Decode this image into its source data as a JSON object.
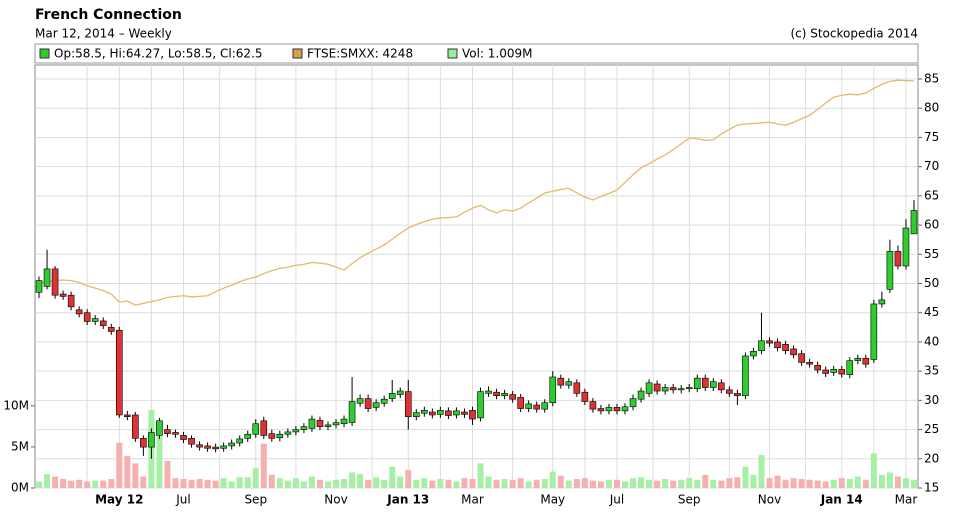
{
  "chart_data": {
    "type": "candlestick",
    "title": "French Connection",
    "subtitle": "Mar 12, 2014 – Weekly",
    "copyright": "(c) Stockopedia 2014",
    "legend": [
      {
        "text": "Op:58.5, Hi:64.27, Lo:58.5, Cl:62.5",
        "color": "#2ecc2e"
      },
      {
        "text": "FTSE:SMXX: 4248",
        "color": "#d9a14a"
      },
      {
        "text": "Vol: 1.009M",
        "color": "#99ee99"
      }
    ],
    "categories": [
      null,
      null,
      null,
      null,
      null,
      null,
      null,
      null,
      null,
      null,
      "May 12",
      null,
      null,
      null,
      null,
      null,
      null,
      null,
      "Jul",
      null,
      null,
      null,
      null,
      null,
      null,
      null,
      null,
      "Sep",
      null,
      null,
      null,
      null,
      null,
      null,
      null,
      null,
      null,
      "Nov",
      null,
      null,
      null,
      null,
      null,
      null,
      null,
      null,
      "Jan 13",
      null,
      null,
      null,
      null,
      null,
      null,
      null,
      "Mar",
      null,
      null,
      null,
      null,
      null,
      null,
      null,
      null,
      null,
      "May",
      null,
      null,
      null,
      null,
      null,
      null,
      null,
      "Jul",
      null,
      null,
      null,
      null,
      null,
      null,
      null,
      null,
      "Sep",
      null,
      null,
      null,
      null,
      null,
      null,
      null,
      null,
      null,
      "Nov",
      null,
      null,
      null,
      null,
      null,
      null,
      null,
      null,
      "Jan 14",
      null,
      null,
      null,
      null,
      null,
      null,
      null,
      "Mar",
      null
    ],
    "open": [
      48.5,
      49.5,
      52.5,
      48.2,
      48,
      45.5,
      45,
      43.5,
      43.6,
      42.5,
      42,
      27.5,
      27.5,
      23.5,
      22,
      24,
      25,
      24.5,
      24,
      23.5,
      22.4,
      22.2,
      22,
      21.8,
      22.2,
      22.7,
      23.5,
      24.2,
      26.5,
      24.3,
      23.6,
      24.2,
      24.6,
      25,
      25.2,
      26.6,
      25.5,
      25.8,
      26,
      26.2,
      29.5,
      30.3,
      28.8,
      29.5,
      30.3,
      31,
      31.5,
      27.2,
      27.8,
      28,
      27.6,
      28.2,
      27.5,
      28,
      28.3,
      27,
      31.2,
      31.4,
      30.8,
      31,
      30.5,
      28.6,
      29.2,
      28.5,
      29.6,
      33.8,
      32.6,
      33,
      31.4,
      29.8,
      28.6,
      28.2,
      28.8,
      28.2,
      28.9,
      30.2,
      31.2,
      32.8,
      31.6,
      32.2,
      31.8,
      32,
      32,
      33.8,
      32.2,
      33,
      31.8,
      31.2,
      30.8,
      37.6,
      38.5,
      40.2,
      40,
      39.6,
      38.8,
      38,
      36.5,
      36,
      35.2,
      34.8,
      35.3,
      34.4,
      36.8,
      37.2,
      37,
      46.5,
      49,
      55.5,
      53,
      58.5
    ],
    "high": [
      51.2,
      55.8,
      53,
      48.8,
      48.6,
      46.1,
      45.6,
      44.6,
      44.2,
      43.1,
      42.6,
      28.2,
      28,
      24,
      25.2,
      27,
      25.8,
      25,
      24.6,
      24,
      23,
      22.8,
      22.6,
      22.8,
      23.3,
      24,
      24.8,
      26.8,
      27.2,
      25,
      24.8,
      25.2,
      25.6,
      26.1,
      27.4,
      27.2,
      26.4,
      26.8,
      27.4,
      34,
      31,
      31,
      30.2,
      30.8,
      33.5,
      32.2,
      33.5,
      28.5,
      28.9,
      28.6,
      28.9,
      28.8,
      28.8,
      28.6,
      28.9,
      32.2,
      32.4,
      32,
      31.8,
      31.6,
      31.1,
      30,
      29.8,
      30.2,
      35,
      34.4,
      33.8,
      33.6,
      32,
      30.4,
      29.2,
      29.4,
      29.4,
      29.5,
      31,
      32.2,
      33.6,
      33.4,
      32.8,
      32.8,
      32.6,
      32.8,
      34.4,
      34.4,
      33.8,
      33.6,
      32.4,
      31.8,
      38.2,
      39,
      45,
      40.8,
      40.6,
      40.2,
      39.4,
      38.6,
      37.1,
      36.6,
      35.8,
      35.9,
      35.9,
      37.4,
      37.8,
      37.8,
      47.2,
      48.6,
      57.5,
      56.5,
      61,
      64.27
    ],
    "low": [
      47.5,
      49,
      47.4,
      47.2,
      45.4,
      44.2,
      42.9,
      42.9,
      42.2,
      41.2,
      27,
      26.6,
      22.9,
      20.5,
      20,
      23.4,
      23.7,
      23.6,
      22.7,
      21.9,
      21.4,
      21.2,
      21.1,
      21.2,
      21.6,
      22.1,
      22.9,
      23.6,
      23.4,
      22.9,
      23,
      23.6,
      24,
      24.4,
      24.6,
      24.9,
      24.9,
      25.2,
      25.4,
      25.6,
      28.9,
      28,
      28.2,
      28.9,
      29.7,
      30.4,
      25,
      26.6,
      27.2,
      26.9,
      27,
      26.8,
      26.9,
      27,
      25.8,
      26.4,
      30.6,
      30.2,
      30.2,
      29.6,
      28,
      28,
      27.9,
      27.9,
      29,
      32,
      32,
      30.6,
      29.2,
      27.9,
      27.6,
      27.6,
      27.6,
      27.6,
      28.3,
      29.6,
      30.6,
      31,
      31,
      31.2,
      31.2,
      31.4,
      31.4,
      31.6,
      31.6,
      31.2,
      30.6,
      29.2,
      30.2,
      37,
      37.9,
      39.2,
      38.4,
      37.9,
      37.2,
      35.9,
      35.6,
      34.6,
      34,
      34.2,
      33.9,
      33.8,
      36.2,
      35.6,
      36.4,
      45.9,
      48.4,
      52.4,
      52.4,
      58.5
    ],
    "close": [
      50.5,
      52.5,
      48,
      47.8,
      46,
      44.8,
      43.5,
      44,
      42.8,
      41.8,
      27.5,
      27.2,
      23.5,
      22,
      24.5,
      26.5,
      24.3,
      24.2,
      23.3,
      22.5,
      22,
      21.8,
      21.7,
      22.2,
      22.7,
      23.4,
      24.2,
      26,
      24,
      23.5,
      24.2,
      24.6,
      25,
      25.5,
      26.8,
      25.5,
      25.8,
      26.2,
      26.8,
      29.8,
      30.3,
      28.6,
      29.6,
      30.2,
      31.2,
      31.6,
      27.2,
      27.9,
      28.3,
      27.5,
      28.3,
      27.4,
      28.2,
      27.6,
      26.8,
      31.5,
      31.6,
      30.8,
      31.2,
      30.2,
      28.6,
      29.4,
      28.5,
      29.6,
      34,
      32.6,
      33.2,
      31.2,
      29.8,
      28.5,
      28.2,
      28.8,
      28.2,
      28.9,
      30.3,
      31.6,
      33,
      31.6,
      32.2,
      31.8,
      32,
      32.2,
      33.8,
      32.2,
      33.2,
      31.8,
      31.2,
      30.8,
      37.6,
      38.4,
      40.2,
      39.8,
      39,
      38.5,
      37.8,
      36.5,
      36.2,
      35.2,
      34.6,
      35.3,
      34.5,
      36.8,
      37.2,
      36.2,
      46.5,
      47.2,
      55.5,
      53,
      59.5,
      62.5
    ],
    "volume": [
      0.8,
      1.7,
      1.4,
      1.1,
      0.9,
      1.0,
      0.8,
      0.9,
      0.9,
      1.1,
      5.5,
      3.9,
      3.0,
      1.4,
      9.5,
      6.3,
      3.3,
      1.2,
      1.1,
      1.0,
      1.1,
      1.0,
      0.9,
      1.2,
      0.8,
      1.3,
      1.3,
      2.4,
      5.4,
      1.6,
      1.2,
      0.9,
      1.2,
      0.8,
      1.4,
      1.0,
      0.8,
      1.0,
      1.1,
      1.9,
      1.7,
      1.0,
      1.3,
      1.0,
      2.6,
      1.4,
      2.2,
      1.0,
      1.2,
      0.9,
      1.1,
      1.0,
      0.8,
      1.2,
      1.1,
      3.0,
      1.4,
      1.0,
      1.1,
      1.0,
      1.2,
      0.8,
      1.0,
      1.1,
      2.0,
      1.5,
      0.9,
      1.1,
      1.2,
      0.9,
      0.8,
      1.0,
      1.0,
      0.8,
      1.2,
      1.3,
      1.0,
      0.9,
      1.1,
      0.9,
      1.0,
      1.2,
      1.0,
      1.6,
      1.0,
      0.9,
      1.2,
      1.3,
      2.6,
      1.6,
      4.0,
      1.2,
      1.5,
      1.0,
      1.2,
      1.1,
      1.0,
      0.9,
      0.8,
      1.0,
      1.2,
      1.1,
      1.4,
      1.0,
      4.2,
      1.6,
      1.9,
      1.4,
      1.2,
      1.0
    ],
    "ftse": [
      50.1,
      50.3,
      50.5,
      50.6,
      50.5,
      50.2,
      49.6,
      49.2,
      48.8,
      48.2,
      46.8,
      47,
      46.3,
      46.6,
      46.9,
      47.2,
      47.6,
      47.8,
      47.9,
      47.7,
      47.8,
      47.9,
      48.6,
      49.2,
      49.7,
      50.3,
      50.8,
      51.1,
      51.7,
      52.2,
      52.6,
      52.8,
      53.1,
      53.3,
      53.6,
      53.5,
      53.3,
      52.8,
      52.3,
      53.4,
      54.4,
      55.2,
      55.9,
      56.6,
      57.6,
      58.6,
      59.5,
      60.1,
      60.6,
      61,
      61.2,
      61.3,
      61.4,
      62.2,
      62.9,
      63.4,
      62.6,
      62.1,
      62.6,
      62.4,
      62.9,
      63.8,
      64.6,
      65.5,
      65.8,
      66.1,
      66.3,
      65.5,
      64.8,
      64.3,
      64.9,
      65.4,
      66,
      67.3,
      68.6,
      69.8,
      70.5,
      71.3,
      72,
      72.9,
      73.9,
      74.9,
      74.8,
      74.5,
      74.6,
      75.6,
      76.4,
      77.1,
      77.3,
      77.4,
      77.5,
      77.6,
      77.3,
      77.1,
      77.6,
      78.2,
      78.8,
      79.8,
      80.9,
      81.9,
      82.2,
      82.4,
      82.3,
      82.6,
      83.4,
      84.1,
      84.6,
      84.8,
      84.7,
      84.7
    ],
    "up_color": "#2ecc2e",
    "down_color": "#dd3333",
    "vol_up_color": "#a6f0a6",
    "vol_down_color": "#f6b0b0",
    "ftse_color": "#e6b86a",
    "ylim": [
      15,
      87.4
    ],
    "yticks": [
      15,
      20,
      25,
      30,
      35,
      40,
      45,
      50,
      55,
      60,
      65,
      70,
      75,
      80,
      85
    ],
    "y2lim": [
      0,
      51.5
    ],
    "y2ticks": [
      {
        "value": 0,
        "label": "0M"
      },
      {
        "value": 5,
        "label": "5M"
      },
      {
        "value": 10,
        "label": "10M"
      }
    ],
    "grid": true
  }
}
